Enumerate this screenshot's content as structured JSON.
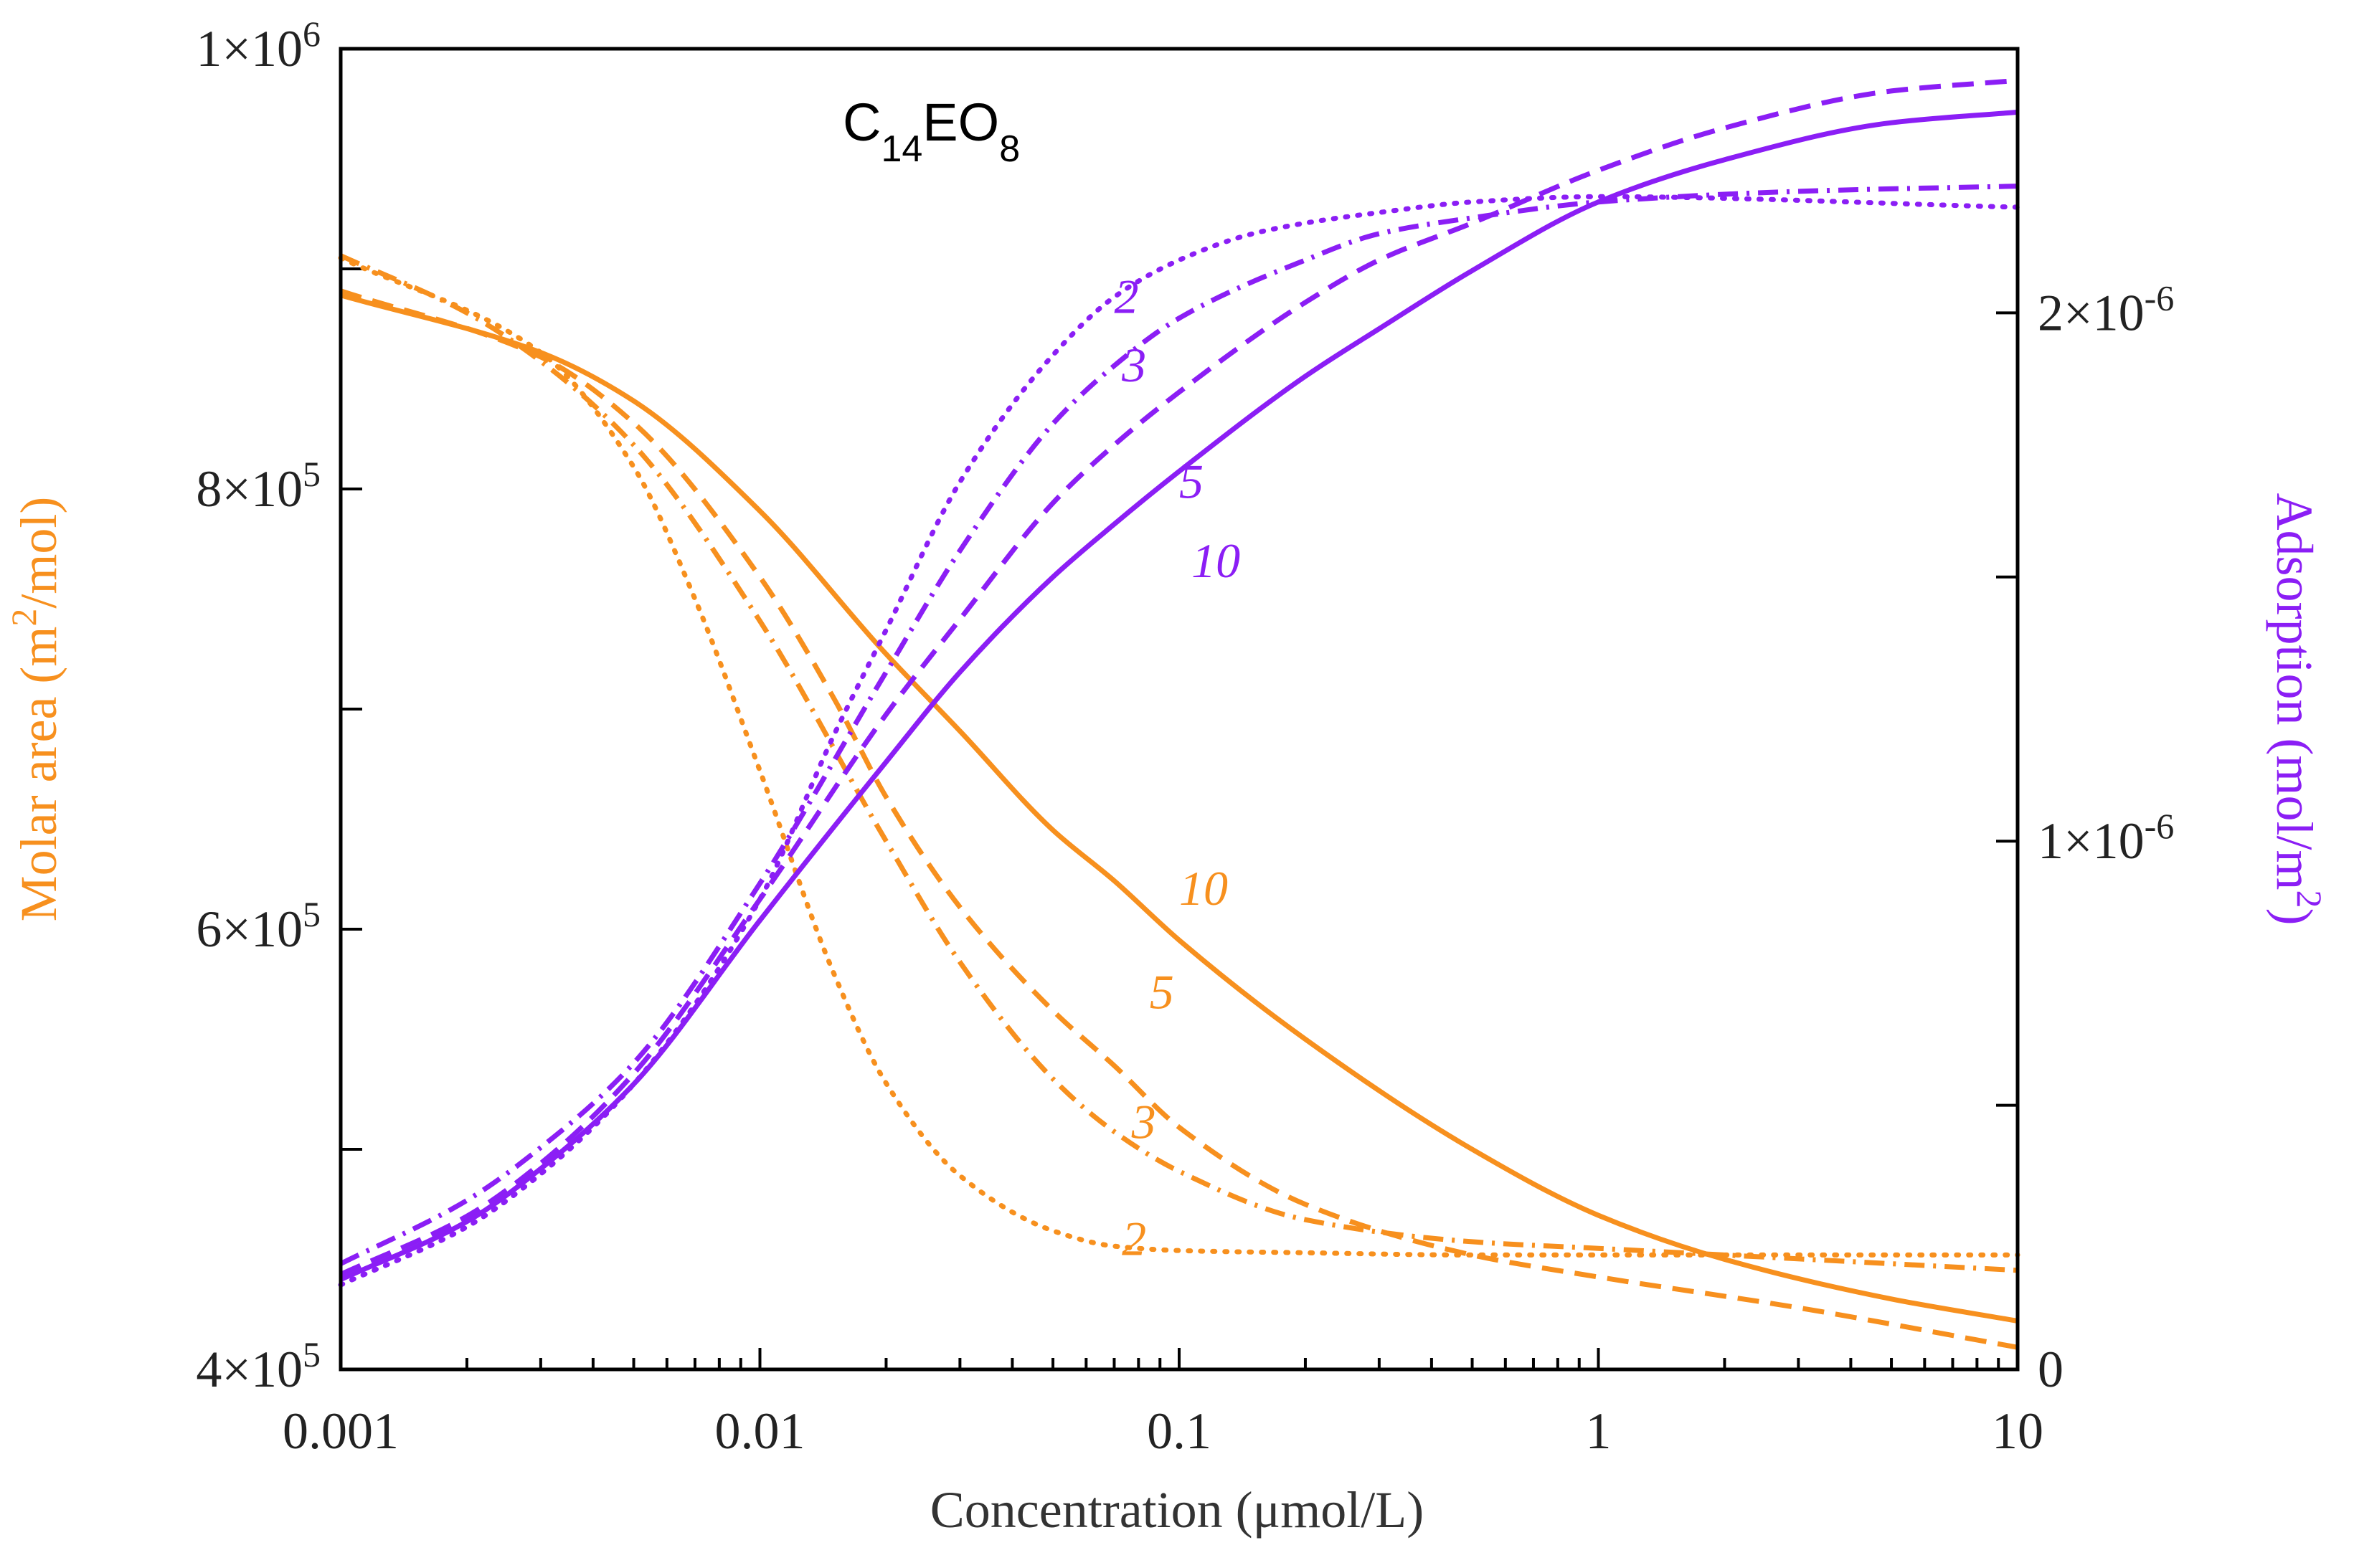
{
  "chart_data": {
    "type": "line",
    "title": "C14EO8",
    "title_parts": {
      "base1": "C",
      "sub1": "14",
      "base2": "EO",
      "sub2": "8"
    },
    "xlabel": "Concentration (μmol/L)",
    "xscale": "log",
    "xlim": [
      0.001,
      10
    ],
    "x_tick_labels": [
      "0.001",
      "0.01",
      "0.1",
      "1",
      "10"
    ],
    "x_tick_values": [
      0.001,
      0.01,
      0.1,
      1,
      10
    ],
    "left_axis": {
      "label_pre": "Molar area (m",
      "label_sup": "2",
      "label_post": "/mol)",
      "color": "#F7901E",
      "ylim": [
        400000,
        1000000
      ],
      "major_ticks": [
        400000,
        600000,
        800000,
        1000000
      ],
      "minor_ticks": [
        500000,
        700000,
        900000
      ],
      "tick_labels": [
        {
          "mant": "4×10",
          "exp": "5"
        },
        {
          "mant": "6×10",
          "exp": "5"
        },
        {
          "mant": "8×10",
          "exp": "5"
        },
        {
          "mant": "1×10",
          "exp": "6"
        }
      ]
    },
    "right_axis": {
      "label_pre": "Adsorption (mol/m",
      "label_sup": "2",
      "label_post": ")",
      "color": "#8B1EF5",
      "ylim": [
        0,
        2.5e-06
      ],
      "major_ticks": [
        0,
        1e-06,
        2e-06
      ],
      "minor_ticks": [
        5e-07,
        1.5e-06
      ],
      "tick_labels": [
        {
          "mant": "0",
          "exp": ""
        },
        {
          "mant": "1×10",
          "exp": "-6"
        },
        {
          "mant": "2×10",
          "exp": "-6"
        }
      ]
    },
    "series": [
      {
        "name": "Molar area, 2",
        "axis": "left",
        "label": "2",
        "dash": "dotted",
        "x": [
          0.001,
          0.003,
          0.005,
          0.007,
          0.01,
          0.015,
          0.02,
          0.03,
          0.05,
          0.07,
          0.1,
          0.2,
          0.5,
          1,
          10
        ],
        "y": [
          905000,
          862000,
          810000,
          750000,
          672000,
          580000,
          530000,
          488000,
          463000,
          456000,
          454000,
          453000,
          452000,
          452000,
          452000
        ]
      },
      {
        "name": "Molar area, 3",
        "axis": "left",
        "label": "3",
        "dash": "dashdot",
        "x": [
          0.001,
          0.002,
          0.003,
          0.005,
          0.01,
          0.02,
          0.03,
          0.05,
          0.07,
          0.1,
          0.2,
          0.5,
          1,
          10
        ],
        "y": [
          906000,
          880000,
          858000,
          820000,
          740000,
          640000,
          585000,
          532000,
          508000,
          490000,
          468000,
          458000,
          455000,
          445000
        ]
      },
      {
        "name": "Molar area, 5",
        "axis": "left",
        "label": "5",
        "dash": "dashed",
        "x": [
          0.001,
          0.003,
          0.005,
          0.01,
          0.015,
          0.02,
          0.03,
          0.05,
          0.07,
          0.1,
          0.2,
          0.5,
          1,
          3,
          10
        ],
        "y": [
          890000,
          860000,
          830000,
          760000,
          705000,
          660000,
          610000,
          563000,
          538000,
          510000,
          475000,
          452000,
          442000,
          428000,
          410000
        ]
      },
      {
        "name": "Molar area, 10",
        "axis": "left",
        "label": "10",
        "dash": "solid",
        "x": [
          0.001,
          0.003,
          0.005,
          0.01,
          0.02,
          0.03,
          0.05,
          0.07,
          0.1,
          0.2,
          0.5,
          1,
          2,
          5,
          10
        ],
        "y": [
          888000,
          862000,
          840000,
          790000,
          725000,
          690000,
          645000,
          622000,
          595000,
          550000,
          500000,
          470000,
          450000,
          432000,
          422000
        ]
      },
      {
        "name": "Adsorption, 2",
        "axis": "right",
        "label": "2",
        "dash": "dotted",
        "x": [
          0.001,
          0.002,
          0.003,
          0.005,
          0.01,
          0.015,
          0.02,
          0.03,
          0.05,
          0.07,
          0.1,
          0.15,
          0.2,
          0.3,
          0.5,
          1,
          10
        ],
        "y": [
          1.6e-07,
          2.7e-07,
          3.7e-07,
          5.4e-07,
          8.9e-07,
          1.2e-06,
          1.4e-06,
          1.68e-06,
          1.92e-06,
          2.03e-06,
          2.1e-06,
          2.15e-06,
          2.17e-06,
          2.19e-06,
          2.21e-06,
          2.22e-06,
          2.2e-06
        ]
      },
      {
        "name": "Adsorption, 3",
        "axis": "right",
        "label": "3",
        "dash": "dashdot",
        "x": [
          0.001,
          0.002,
          0.003,
          0.005,
          0.01,
          0.02,
          0.03,
          0.05,
          0.07,
          0.1,
          0.2,
          0.3,
          0.5,
          1,
          3,
          10
        ],
        "y": [
          2e-07,
          3.2e-07,
          4.2e-07,
          5.8e-07,
          9.2e-07,
          1.32e-06,
          1.55e-06,
          1.79e-06,
          1.9e-06,
          1.99e-06,
          2.1e-06,
          2.15e-06,
          2.18e-06,
          2.21e-06,
          2.23e-06,
          2.24e-06
        ]
      },
      {
        "name": "Adsorption, 5",
        "axis": "right",
        "label": "5",
        "dash": "dashed",
        "x": [
          0.001,
          0.002,
          0.003,
          0.005,
          0.01,
          0.02,
          0.03,
          0.05,
          0.07,
          0.1,
          0.2,
          0.3,
          0.5,
          1,
          2,
          5,
          10
        ],
        "y": [
          1.8e-07,
          2.9e-07,
          3.9e-07,
          5.6e-07,
          8.9e-07,
          1.24e-06,
          1.42e-06,
          1.64e-06,
          1.75e-06,
          1.85e-06,
          2.02e-06,
          2.1e-06,
          2.17e-06,
          2.27e-06,
          2.35e-06,
          2.42e-06,
          2.44e-06
        ]
      },
      {
        "name": "Adsorption, 10",
        "axis": "right",
        "label": "10",
        "dash": "solid",
        "x": [
          0.001,
          0.002,
          0.003,
          0.005,
          0.01,
          0.02,
          0.03,
          0.05,
          0.07,
          0.1,
          0.2,
          0.3,
          0.5,
          1,
          2,
          5,
          10
        ],
        "y": [
          1.7e-07,
          2.8e-07,
          3.8e-07,
          5.4e-07,
          8.5e-07,
          1.15e-06,
          1.32e-06,
          1.5e-06,
          1.6e-06,
          1.7e-06,
          1.88e-06,
          1.97e-06,
          2.08e-06,
          2.21e-06,
          2.29e-06,
          2.36e-06,
          2.38e-06
        ]
      }
    ],
    "annotations": [
      {
        "text": "2",
        "axis": "right",
        "color": "#8B1EF5",
        "x": 0.07,
        "y": 2e-06
      },
      {
        "text": "3",
        "axis": "right",
        "color": "#8B1EF5",
        "x": 0.073,
        "y": 1.87e-06
      },
      {
        "text": "5",
        "axis": "right",
        "color": "#8B1EF5",
        "x": 0.1,
        "y": 1.65e-06
      },
      {
        "text": "10",
        "axis": "right",
        "color": "#8B1EF5",
        "x": 0.107,
        "y": 1.5e-06
      },
      {
        "text": "10",
        "axis": "left",
        "color": "#F7901E",
        "x": 0.1,
        "y": 611000
      },
      {
        "text": "5",
        "axis": "left",
        "color": "#F7901E",
        "x": 0.085,
        "y": 564000
      },
      {
        "text": "3",
        "axis": "left",
        "color": "#F7901E",
        "x": 0.077,
        "y": 505000
      },
      {
        "text": "2",
        "axis": "left",
        "color": "#F7901E",
        "x": 0.073,
        "y": 452000
      }
    ]
  }
}
